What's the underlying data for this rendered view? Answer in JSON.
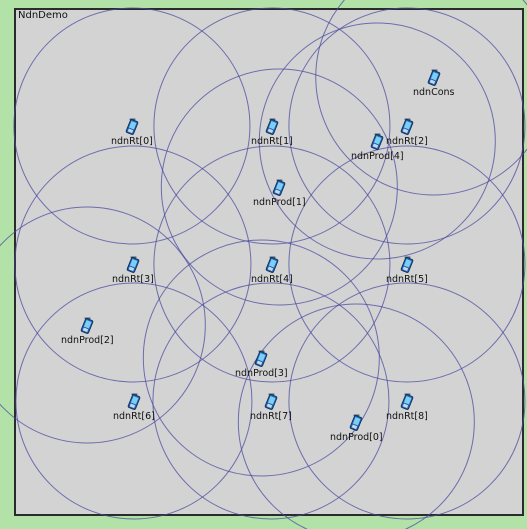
{
  "window": {
    "network_name": "NdnDemo"
  },
  "colors": {
    "background": "#b3e2a8",
    "playground": "#d3d3d3",
    "range_circle": "#4a4aa0"
  },
  "nodes": [
    {
      "id": "ndnRt-0",
      "label": "ndnRt[0]",
      "icon": "mobile-device-icon"
    },
    {
      "id": "ndnRt-1",
      "label": "ndnRt[1]",
      "icon": "mobile-device-icon"
    },
    {
      "id": "ndnRt-2",
      "label": "ndnRt[2]",
      "icon": "mobile-device-icon"
    },
    {
      "id": "ndnRt-3",
      "label": "ndnRt[3]",
      "icon": "mobile-device-icon"
    },
    {
      "id": "ndnRt-4",
      "label": "ndnRt[4]",
      "icon": "mobile-device-icon"
    },
    {
      "id": "ndnRt-5",
      "label": "ndnRt[5]",
      "icon": "mobile-device-icon"
    },
    {
      "id": "ndnRt-6",
      "label": "ndnRt[6]",
      "icon": "mobile-device-icon"
    },
    {
      "id": "ndnRt-7",
      "label": "ndnRt[7]",
      "icon": "mobile-device-icon"
    },
    {
      "id": "ndnRt-8",
      "label": "ndnRt[8]",
      "icon": "mobile-device-icon"
    },
    {
      "id": "ndnCons",
      "label": "ndnCons",
      "icon": "mobile-device-icon"
    },
    {
      "id": "ndnProd-0",
      "label": "ndnProd[0]",
      "icon": "mobile-device-icon"
    },
    {
      "id": "ndnProd-1",
      "label": "ndnProd[1]",
      "icon": "mobile-device-icon"
    },
    {
      "id": "ndnProd-2",
      "label": "ndnProd[2]",
      "icon": "mobile-device-icon"
    },
    {
      "id": "ndnProd-3",
      "label": "ndnProd[3]",
      "icon": "mobile-device-icon"
    },
    {
      "id": "ndnProd-4",
      "label": "ndnProd[4]",
      "icon": "mobile-device-icon"
    }
  ]
}
